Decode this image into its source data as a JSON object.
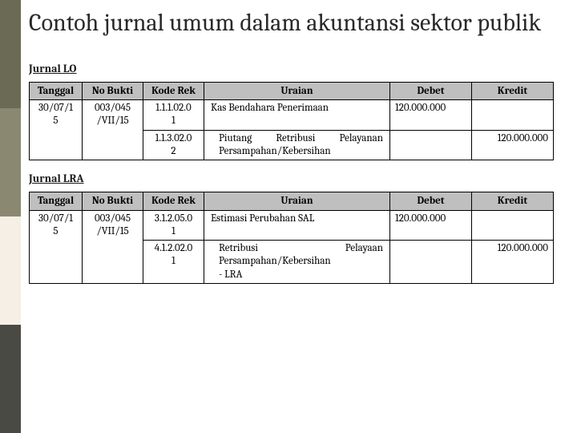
{
  "title": "Contoh jurnal umum dalam akuntansi sektor publik",
  "labels": {
    "jurnal_lo": "Jurnal LO",
    "jurnal_lra": "Jurnal LRA"
  },
  "headers": {
    "tanggal": "Tanggal",
    "no_bukti": "No Bukti",
    "kode_rek": "Kode Rek",
    "uraian": "Uraian",
    "debet": "Debet",
    "kredit": "Kredit"
  },
  "table_lo": {
    "rows": [
      {
        "tanggal_l1": "30/07/1",
        "tanggal_l2": "5",
        "no_bukti_l1": "003/045",
        "no_bukti_l2": "/VII/15",
        "kode_l1": "1.1.1.02.0",
        "kode_l2": "1",
        "uraian": "Kas Bendahara Penerimaan",
        "debet": "120.000.000",
        "kredit": ""
      },
      {
        "tanggal_l1": "",
        "tanggal_l2": "",
        "no_bukti_l1": "",
        "no_bukti_l2": "",
        "kode_l1": "1.1.3.02.0",
        "kode_l2": "2",
        "uraian_l1": "Piutang Retribusi",
        "uraian_l2": "Pelayanan",
        "uraian_l3": "Persampahan/Kebersihan",
        "debet": "",
        "kredit": "120.000.000"
      }
    ]
  },
  "table_lra": {
    "rows": [
      {
        "tanggal_l1": "30/07/1",
        "tanggal_l2": "5",
        "no_bukti_l1": "003/045",
        "no_bukti_l2": "/VII/15",
        "kode_l1": "3.1.2.05.0",
        "kode_l2": "1",
        "uraian": "Estimasi Perubahan SAL",
        "debet": "120.000.000",
        "kredit": ""
      },
      {
        "tanggal_l1": "",
        "tanggal_l2": "",
        "no_bukti_l1": "",
        "no_bukti_l2": "",
        "kode_l1": "4.1.2.02.0",
        "kode_l2": "1",
        "uraian_l1": "Retribusi Pelayaan",
        "uraian_l2": "Persampahan/Kebersihan",
        "uraian_l3": "- LRA",
        "debet": "",
        "kredit": "120.000.000"
      }
    ]
  },
  "side_colors": {
    "c1": "#6b6a55",
    "c2": "#8a8870",
    "c3": "#f5efe6",
    "c4": "#4a4a44"
  }
}
